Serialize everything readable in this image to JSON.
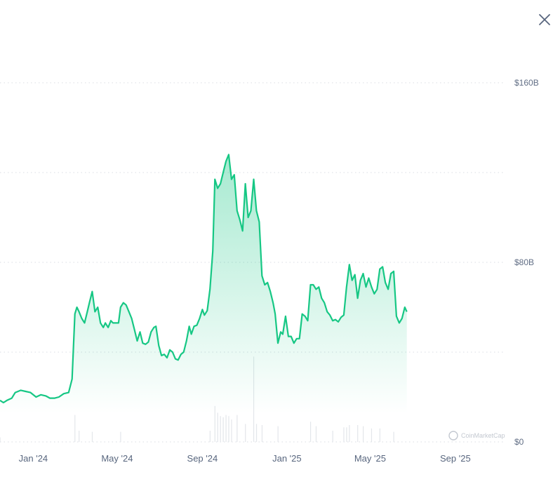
{
  "chart_data": {
    "type": "area",
    "title": "",
    "xlabel": "",
    "ylabel": "",
    "y_unit": "B USD",
    "ylim": [
      0,
      160
    ],
    "y_ticks": [
      {
        "value": 160,
        "label": "$160B"
      },
      {
        "value": 80,
        "label": "$80B"
      },
      {
        "value": 0,
        "label": "$0"
      }
    ],
    "y_gridlines": [
      0,
      40,
      80,
      120,
      160
    ],
    "grid": "dotted horizontal",
    "x_range": [
      "2023-11-14",
      "2025-11-10"
    ],
    "x_ticks": [
      {
        "date": "2024-01-01",
        "label": "Jan '24"
      },
      {
        "date": "2024-05-01",
        "label": "May '24"
      },
      {
        "date": "2024-09-01",
        "label": "Sep '24"
      },
      {
        "date": "2025-01-01",
        "label": "Jan '25"
      },
      {
        "date": "2025-05-01",
        "label": "May '25"
      },
      {
        "date": "2025-09-01",
        "label": "Sep '25"
      }
    ],
    "series": [
      {
        "values": [
          [
            "2023-11-14",
            18.5
          ],
          [
            "2023-11-19",
            17.5
          ],
          [
            "2023-11-24",
            18.5
          ],
          [
            "2023-12-01",
            19.5
          ],
          [
            "2023-12-06",
            22.0
          ],
          [
            "2023-12-14",
            23.0
          ],
          [
            "2023-12-21",
            22.5
          ],
          [
            "2023-12-28",
            22.0
          ],
          [
            "2024-01-05",
            20.0
          ],
          [
            "2024-01-12",
            21.0
          ],
          [
            "2024-01-19",
            20.5
          ],
          [
            "2024-01-25",
            19.5
          ],
          [
            "2024-02-01",
            19.5
          ],
          [
            "2024-02-07",
            20.0
          ],
          [
            "2024-02-14",
            21.5
          ],
          [
            "2024-02-21",
            22.0
          ],
          [
            "2024-02-26",
            28.0
          ],
          [
            "2024-03-01",
            57.0
          ],
          [
            "2024-03-04",
            60.0
          ],
          [
            "2024-03-07",
            58.0
          ],
          [
            "2024-03-11",
            55.0
          ],
          [
            "2024-03-15",
            53.0
          ],
          [
            "2024-03-19",
            58.0
          ],
          [
            "2024-03-22",
            62.0
          ],
          [
            "2024-03-26",
            67.0
          ],
          [
            "2024-03-30",
            58.0
          ],
          [
            "2024-04-03",
            60.0
          ],
          [
            "2024-04-07",
            53.0
          ],
          [
            "2024-04-11",
            51.0
          ],
          [
            "2024-04-14",
            53.0
          ],
          [
            "2024-04-18",
            51.0
          ],
          [
            "2024-04-22",
            54.0
          ],
          [
            "2024-04-25",
            53.0
          ],
          [
            "2024-04-29",
            53.0
          ],
          [
            "2024-05-03",
            53.0
          ],
          [
            "2024-05-06",
            60.0
          ],
          [
            "2024-05-10",
            62.0
          ],
          [
            "2024-05-14",
            61.0
          ],
          [
            "2024-05-18",
            58.0
          ],
          [
            "2024-05-22",
            55.0
          ],
          [
            "2024-05-26",
            50.0
          ],
          [
            "2024-05-30",
            45.0
          ],
          [
            "2024-06-03",
            49.0
          ],
          [
            "2024-06-07",
            44.0
          ],
          [
            "2024-06-11",
            43.5
          ],
          [
            "2024-06-15",
            44.5
          ],
          [
            "2024-06-19",
            49.0
          ],
          [
            "2024-06-23",
            51.0
          ],
          [
            "2024-06-26",
            51.5
          ],
          [
            "2024-06-30",
            43.0
          ],
          [
            "2024-07-04",
            38.5
          ],
          [
            "2024-07-08",
            39.0
          ],
          [
            "2024-07-12",
            37.5
          ],
          [
            "2024-07-16",
            41.0
          ],
          [
            "2024-07-20",
            40.0
          ],
          [
            "2024-07-24",
            37.0
          ],
          [
            "2024-07-28",
            36.5
          ],
          [
            "2024-08-01",
            39.0
          ],
          [
            "2024-08-05",
            40.0
          ],
          [
            "2024-08-09",
            45.0
          ],
          [
            "2024-08-13",
            51.5
          ],
          [
            "2024-08-16",
            48.0
          ],
          [
            "2024-08-20",
            51.5
          ],
          [
            "2024-08-24",
            52.0
          ],
          [
            "2024-08-28",
            55.0
          ],
          [
            "2024-09-01",
            59.0
          ],
          [
            "2024-09-04",
            56.5
          ],
          [
            "2024-09-08",
            58.5
          ],
          [
            "2024-09-12",
            68.0
          ],
          [
            "2024-09-16",
            85.0
          ],
          [
            "2024-09-19",
            117.0
          ],
          [
            "2024-09-23",
            113.0
          ],
          [
            "2024-09-27",
            115.0
          ],
          [
            "2024-10-01",
            120.0
          ],
          [
            "2024-10-05",
            125.0
          ],
          [
            "2024-10-09",
            128.0
          ],
          [
            "2024-10-13",
            117.0
          ],
          [
            "2024-10-17",
            119.0
          ],
          [
            "2024-10-21",
            103.0
          ],
          [
            "2024-10-25",
            99.0
          ],
          [
            "2024-10-29",
            94.0
          ],
          [
            "2024-11-02",
            115.0
          ],
          [
            "2024-11-06",
            100.0
          ],
          [
            "2024-11-10",
            103.0
          ],
          [
            "2024-11-14",
            117.0
          ],
          [
            "2024-11-18",
            103.0
          ],
          [
            "2024-11-22",
            98.0
          ],
          [
            "2024-11-26",
            74.0
          ],
          [
            "2024-11-30",
            70.0
          ],
          [
            "2024-12-04",
            71.0
          ],
          [
            "2024-12-08",
            67.0
          ],
          [
            "2024-12-12",
            62.0
          ],
          [
            "2024-12-15",
            57.0
          ],
          [
            "2024-12-19",
            44.0
          ],
          [
            "2024-12-23",
            49.0
          ],
          [
            "2024-12-26",
            48.0
          ],
          [
            "2024-12-30",
            56.0
          ],
          [
            "2025-01-03",
            47.0
          ],
          [
            "2025-01-07",
            47.0
          ],
          [
            "2025-01-11",
            44.0
          ],
          [
            "2025-01-15",
            46.0
          ],
          [
            "2025-01-19",
            46.0
          ],
          [
            "2025-01-23",
            57.0
          ],
          [
            "2025-01-27",
            56.0
          ],
          [
            "2025-01-31",
            54.0
          ],
          [
            "2025-02-04",
            70.0
          ],
          [
            "2025-02-08",
            70.0
          ],
          [
            "2025-02-12",
            68.0
          ],
          [
            "2025-02-16",
            69.0
          ],
          [
            "2025-02-20",
            64.0
          ],
          [
            "2025-02-24",
            62.0
          ],
          [
            "2025-02-28",
            58.0
          ],
          [
            "2025-03-04",
            56.5
          ],
          [
            "2025-03-08",
            54.0
          ],
          [
            "2025-03-12",
            54.5
          ],
          [
            "2025-03-16",
            53.5
          ],
          [
            "2025-03-20",
            55.5
          ],
          [
            "2025-03-24",
            56.5
          ],
          [
            "2025-03-28",
            69.0
          ],
          [
            "2025-04-01",
            79.0
          ],
          [
            "2025-04-05",
            72.0
          ],
          [
            "2025-04-09",
            74.5
          ],
          [
            "2025-04-13",
            64.0
          ],
          [
            "2025-04-17",
            72.0
          ],
          [
            "2025-04-21",
            75.0
          ],
          [
            "2025-04-25",
            69.0
          ],
          [
            "2025-04-29",
            73.0
          ],
          [
            "2025-05-03",
            69.0
          ],
          [
            "2025-05-07",
            66.0
          ],
          [
            "2025-05-11",
            68.0
          ],
          [
            "2025-05-15",
            77.0
          ],
          [
            "2025-05-19",
            78.0
          ],
          [
            "2025-05-23",
            71.0
          ],
          [
            "2025-05-27",
            68.0
          ],
          [
            "2025-05-31",
            75.0
          ],
          [
            "2025-06-04",
            76.0
          ],
          [
            "2025-06-08",
            56.0
          ],
          [
            "2025-06-12",
            53.0
          ],
          [
            "2025-06-16",
            55.0
          ],
          [
            "2025-06-20",
            60.0
          ],
          [
            "2025-06-23",
            58.0
          ]
        ]
      }
    ],
    "volume": [
      [
        "2023-11-14",
        2.0
      ],
      [
        "2024-03-01",
        12.0
      ],
      [
        "2024-03-07",
        5.0
      ],
      [
        "2024-03-26",
        4.5
      ],
      [
        "2024-05-06",
        4.5
      ],
      [
        "2024-09-12",
        5.0
      ],
      [
        "2024-09-19",
        16.0
      ],
      [
        "2024-09-23",
        13.0
      ],
      [
        "2024-09-27",
        11.5
      ],
      [
        "2024-10-01",
        11.0
      ],
      [
        "2024-10-05",
        12.0
      ],
      [
        "2024-10-09",
        11.5
      ],
      [
        "2024-10-13",
        10.0
      ],
      [
        "2024-10-21",
        12.0
      ],
      [
        "2024-11-02",
        8.0
      ],
      [
        "2024-11-14",
        38.0
      ],
      [
        "2024-11-18",
        8.0
      ],
      [
        "2024-11-26",
        7.5
      ],
      [
        "2024-12-19",
        7.0
      ],
      [
        "2025-02-04",
        9.0
      ],
      [
        "2025-02-12",
        7.0
      ],
      [
        "2025-03-08",
        5.0
      ],
      [
        "2025-03-24",
        6.5
      ],
      [
        "2025-03-28",
        6.5
      ],
      [
        "2025-04-01",
        7.5
      ],
      [
        "2025-04-13",
        7.5
      ],
      [
        "2025-04-21",
        7.0
      ],
      [
        "2025-05-03",
        6.0
      ],
      [
        "2025-05-15",
        6.0
      ],
      [
        "2025-06-04",
        4.5
      ]
    ],
    "watermark": "CoinMarketCap",
    "colors": {
      "line": "#16c784",
      "area_top": "#16c784",
      "grid": "#d9dde3",
      "volume": "#e3e6ea",
      "axis_text": "#616e85"
    }
  },
  "ui": {
    "close_icon": "close-icon"
  }
}
